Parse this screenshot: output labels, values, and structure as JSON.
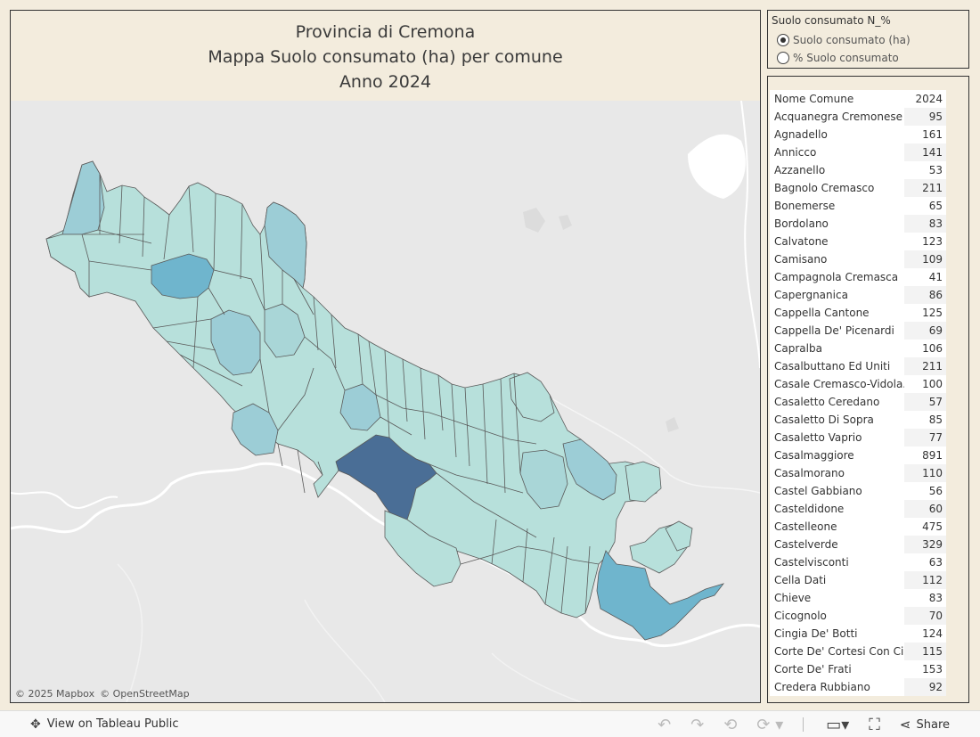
{
  "title": {
    "line1": "Provincia di Cremona",
    "line2": "Mappa Suolo consumato (ha) per comune",
    "line3": "Anno 2024"
  },
  "map": {
    "attribution_mapbox": "© 2025 Mapbox",
    "attribution_osm": "© OpenStreetMap",
    "colors": {
      "low": "#b7e0db",
      "mid": "#9ccdd6",
      "high": "#6fb5cd",
      "max": "#4a6e96",
      "border": "#5a5a5a",
      "water": "#ffffff",
      "land": "#e8e8e8"
    }
  },
  "param": {
    "title": "Suolo consumato N_%",
    "options": [
      {
        "label": "Suolo consumato (ha)",
        "selected": true
      },
      {
        "label": "% Suolo consumato",
        "selected": false
      }
    ]
  },
  "table": {
    "col_name": "Nome Comune",
    "col_value": "2024",
    "rows": [
      {
        "name": "Acquanegra Cremonese",
        "value": "95"
      },
      {
        "name": "Agnadello",
        "value": "161"
      },
      {
        "name": "Annicco",
        "value": "141"
      },
      {
        "name": "Azzanello",
        "value": "53"
      },
      {
        "name": "Bagnolo Cremasco",
        "value": "211"
      },
      {
        "name": "Bonemerse",
        "value": "65"
      },
      {
        "name": "Bordolano",
        "value": "83"
      },
      {
        "name": "Calvatone",
        "value": "123"
      },
      {
        "name": "Camisano",
        "value": "109"
      },
      {
        "name": "Campagnola Cremasca",
        "value": "41"
      },
      {
        "name": "Capergnanica",
        "value": "86"
      },
      {
        "name": "Cappella Cantone",
        "value": "125"
      },
      {
        "name": "Cappella De' Picenardi",
        "value": "69"
      },
      {
        "name": "Capralba",
        "value": "106"
      },
      {
        "name": "Casalbuttano Ed Uniti",
        "value": "211"
      },
      {
        "name": "Casale Cremasco-Vidola..",
        "value": "100"
      },
      {
        "name": "Casaletto Ceredano",
        "value": "57"
      },
      {
        "name": "Casaletto Di Sopra",
        "value": "85"
      },
      {
        "name": "Casaletto Vaprio",
        "value": "77"
      },
      {
        "name": "Casalmaggiore",
        "value": "891"
      },
      {
        "name": "Casalmorano",
        "value": "110"
      },
      {
        "name": "Castel Gabbiano",
        "value": "56"
      },
      {
        "name": "Casteldidone",
        "value": "60"
      },
      {
        "name": "Castelleone",
        "value": "475"
      },
      {
        "name": "Castelverde",
        "value": "329"
      },
      {
        "name": "Castelvisconti",
        "value": "63"
      },
      {
        "name": "Cella Dati",
        "value": "112"
      },
      {
        "name": "Chieve",
        "value": "83"
      },
      {
        "name": "Cicognolo",
        "value": "70"
      },
      {
        "name": "Cingia De' Botti",
        "value": "124"
      },
      {
        "name": "Corte De' Cortesi Con Ci..",
        "value": "115"
      },
      {
        "name": "Corte De' Frati",
        "value": "153"
      },
      {
        "name": "Credera Rubbiano",
        "value": "92"
      }
    ]
  },
  "footer": {
    "view_label": "View on Tableau Public",
    "share_label": "Share"
  }
}
